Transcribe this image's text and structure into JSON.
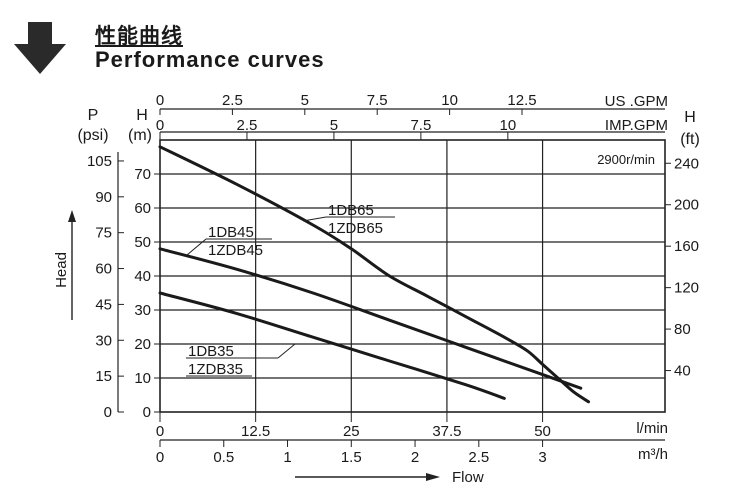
{
  "header": {
    "title_cn": "性能曲线",
    "title_en": "Performance curves",
    "arrow_icon": "down-arrow-icon"
  },
  "chart_data": {
    "type": "line",
    "speed_note": "2900r/min",
    "grid": true,
    "left_axes": {
      "p_label": "P",
      "p_unit": "(psi)",
      "h_label": "H",
      "h_unit": "(m)",
      "p_ticks": [
        "105",
        "90",
        "75",
        "60",
        "45",
        "30",
        "15",
        "0"
      ],
      "h_ticks": [
        "70",
        "60",
        "50",
        "40",
        "30",
        "20",
        "10",
        "0"
      ],
      "vertical_label": "Head"
    },
    "right_axis": {
      "label": "H",
      "unit": "(ft)",
      "ticks": [
        "240",
        "200",
        "160",
        "120",
        "80",
        "40"
      ]
    },
    "top_axes": {
      "us_label": "US .GPM",
      "imp_label": "IMP.GPM",
      "us_ticks": [
        "0",
        "2.5",
        "5",
        "7.5",
        "10",
        "12.5"
      ],
      "imp_ticks": [
        "0",
        "2.5",
        "5",
        "7.5",
        "10"
      ]
    },
    "bottom_axes": {
      "lmin_label": "l/min",
      "m3h_label": "m³/h",
      "lmin_ticks": [
        "0",
        "12.5",
        "25",
        "37.5",
        "50"
      ],
      "m3h_ticks": [
        "0",
        "0.5",
        "1",
        "1.5",
        "2",
        "2.5",
        "3"
      ],
      "flow_label": "Flow"
    },
    "xlim_lmin": [
      0,
      66
    ],
    "ylim_m": [
      0,
      80
    ],
    "series": [
      {
        "name": "1DB65",
        "alt_name": "1ZDB65",
        "points": [
          [
            0,
            78
          ],
          [
            10,
            67
          ],
          [
            20,
            55
          ],
          [
            25,
            48
          ],
          [
            30,
            40
          ],
          [
            35,
            34
          ],
          [
            40,
            28
          ],
          [
            45,
            22
          ],
          [
            48,
            18
          ],
          [
            50,
            14
          ],
          [
            52,
            10
          ],
          [
            54,
            6
          ],
          [
            56,
            3
          ]
        ]
      },
      {
        "name": "1DB45",
        "alt_name": "1ZDB45",
        "points": [
          [
            0,
            48
          ],
          [
            10,
            42
          ],
          [
            20,
            35
          ],
          [
            30,
            27
          ],
          [
            40,
            19
          ],
          [
            50,
            11
          ],
          [
            55,
            7
          ]
        ]
      },
      {
        "name": "1DB35",
        "alt_name": "1ZDB35",
        "points": [
          [
            0,
            35
          ],
          [
            10,
            29
          ],
          [
            20,
            22
          ],
          [
            30,
            15
          ],
          [
            40,
            8
          ],
          [
            45,
            4
          ]
        ]
      }
    ]
  }
}
